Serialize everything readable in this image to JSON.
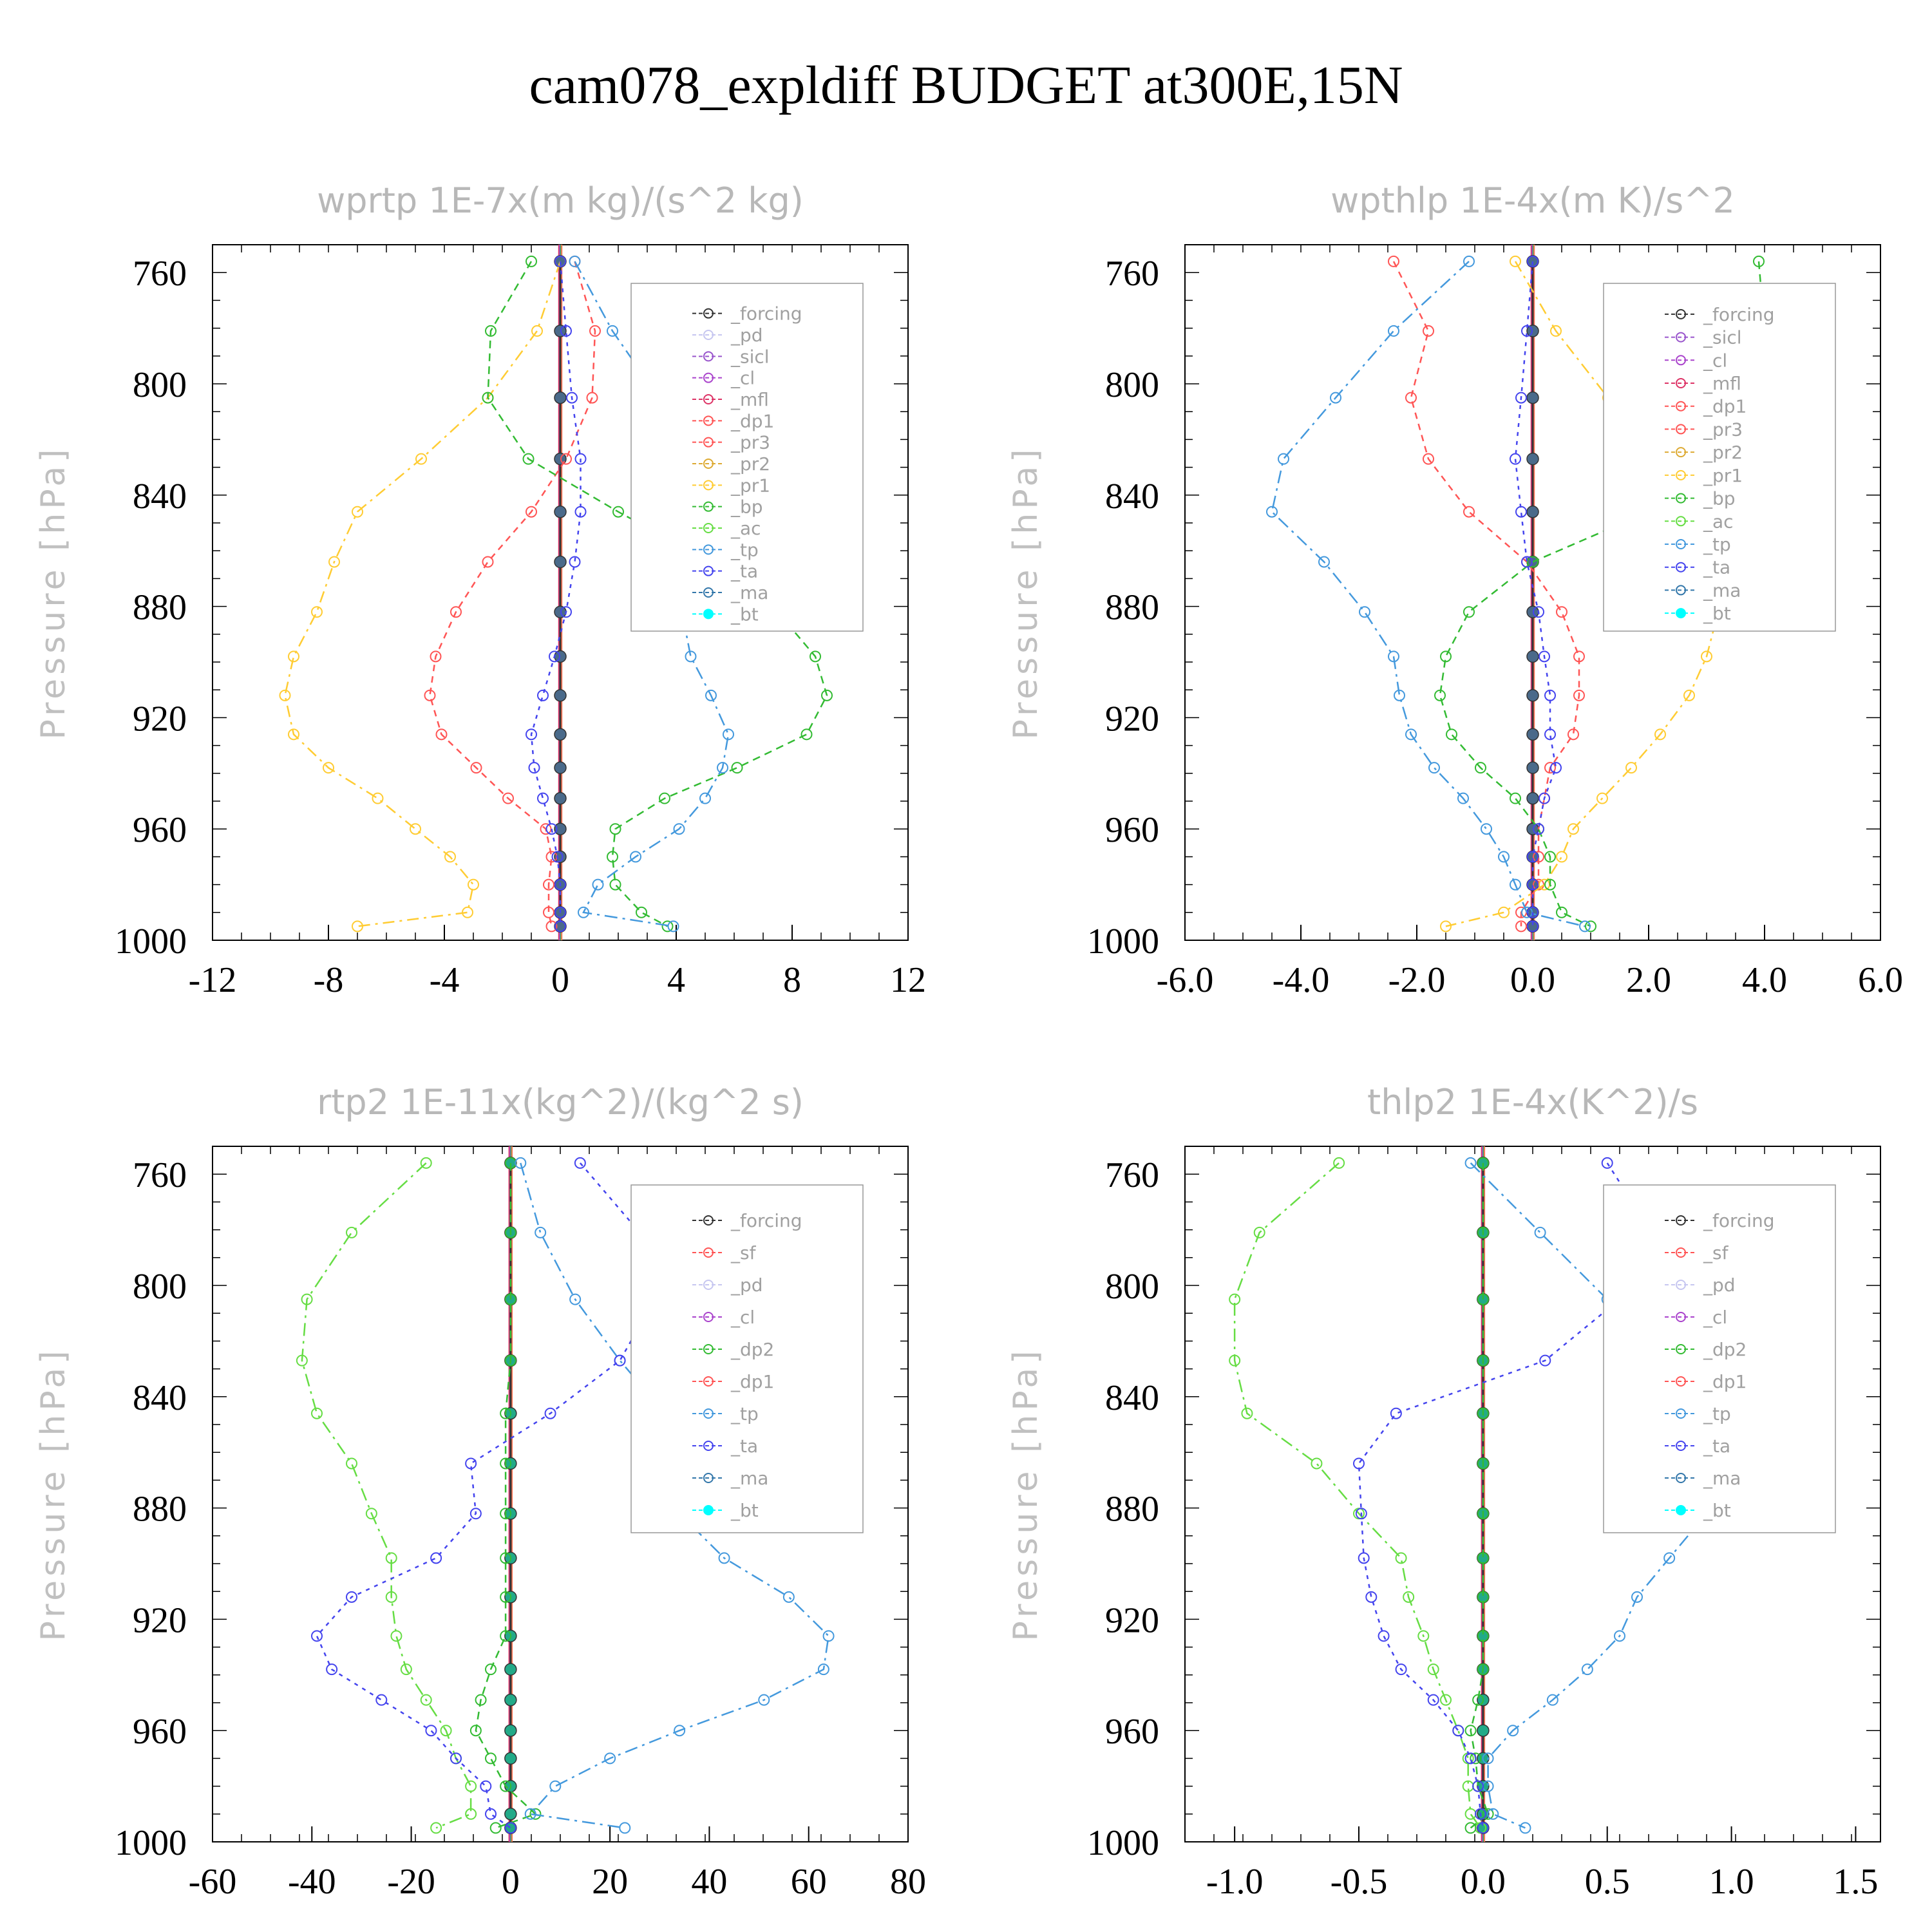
{
  "title": "cam078_expldiff  BUDGET at300E,15N",
  "colors": {
    "forcing": "#333333",
    "pd": "#c6c6f0",
    "sicl": "#9955cc",
    "cl": "#aa44cc",
    "mfl": "#dd3366",
    "dp1": "#ff5555",
    "pr3": "#ff5555",
    "pr2": "#ddaa33",
    "pr1": "#ffcc33",
    "bp": "#33bb33",
    "ac": "#66dd44",
    "tp": "#4499dd",
    "ta": "#4444ee",
    "ma": "#3377aa",
    "bt": "#00ffff"
  },
  "chart_data": [
    {
      "type": "line",
      "title": "wprtp  1E-7x(m kg)/(s^2 kg)",
      "ylabel": "Pressure [hPa]",
      "xlim": [
        -12,
        12
      ],
      "xticks": [
        "-12",
        "-8",
        "-4",
        "0",
        "4",
        "8",
        "12"
      ],
      "ylim": [
        1000,
        750
      ],
      "yticks": [
        "760",
        "800",
        "840",
        "880",
        "920",
        "960",
        "1000"
      ],
      "legend": [
        "_forcing",
        "_pd",
        "_sicl",
        "_cl",
        "_mfl",
        "_dp1",
        "_pr3",
        "_pr2",
        "_pr1",
        "_bp",
        "_ac",
        "_tp",
        "_ta",
        "_ma",
        "_bt"
      ],
      "y": [
        756,
        781,
        805,
        827,
        846,
        864,
        882,
        898,
        912,
        926,
        938,
        949,
        960,
        970,
        980,
        990,
        995
      ],
      "series": [
        {
          "name": "_forcing",
          "values": [
            0,
            0,
            0,
            0,
            0,
            0,
            0,
            0,
            0,
            0,
            0,
            0,
            0,
            0,
            0,
            0,
            0
          ]
        },
        {
          "name": "_pr3",
          "values": [
            0.5,
            1.2,
            1.1,
            0.2,
            -1,
            -2.5,
            -3.6,
            -4.3,
            -4.5,
            -4.1,
            -2.9,
            -1.8,
            -0.5,
            -0.3,
            -0.4,
            -0.4,
            -0.3
          ]
        },
        {
          "name": "_pr1",
          "values": [
            0,
            -0.8,
            -2.5,
            -4.8,
            -7,
            -7.8,
            -8.4,
            -9.2,
            -9.5,
            -9.2,
            -8,
            -6.3,
            -5,
            -3.8,
            -3,
            -3.2,
            -7
          ]
        },
        {
          "name": "_bp",
          "values": [
            -1,
            -2.4,
            -2.5,
            -1.1,
            2,
            5.2,
            7.5,
            8.8,
            9.2,
            8.5,
            6.1,
            3.6,
            1.9,
            1.8,
            1.9,
            2.8,
            3.7
          ]
        },
        {
          "name": "_tp",
          "values": [
            0.5,
            1.8,
            3.4,
            4.2,
            4.5,
            4.2,
            4.2,
            4.5,
            5.2,
            5.8,
            5.6,
            5,
            4.1,
            2.6,
            1.3,
            0.8,
            3.9
          ]
        },
        {
          "name": "_ta",
          "values": [
            0,
            0.2,
            0.4,
            0.7,
            0.7,
            0.5,
            0.2,
            -0.2,
            -0.6,
            -1,
            -0.9,
            -0.6,
            -0.3,
            -0.1,
            0,
            0,
            0
          ]
        }
      ]
    },
    {
      "type": "line",
      "title": "wpthlp  1E-4x(m K)/s^2",
      "ylabel": "Pressure [hPa]",
      "xlim": [
        -6,
        6
      ],
      "xticks": [
        "-6.0",
        "-4.0",
        "-2.0",
        "0.0",
        "2.0",
        "4.0",
        "6.0"
      ],
      "ylim": [
        1000,
        750
      ],
      "yticks": [
        "760",
        "800",
        "840",
        "880",
        "920",
        "960",
        "1000"
      ],
      "legend": [
        "_forcing",
        "_sicl",
        "_cl",
        "_mfl",
        "_dp1",
        "_pr3",
        "_pr2",
        "_pr1",
        "_bp",
        "_ac",
        "_tp",
        "_ta",
        "_ma",
        "_bt"
      ],
      "y": [
        756,
        781,
        805,
        827,
        846,
        864,
        882,
        898,
        912,
        926,
        938,
        949,
        960,
        970,
        980,
        990,
        995
      ],
      "series": [
        {
          "name": "_forcing",
          "values": [
            0,
            0,
            0,
            0,
            0,
            0,
            0,
            0,
            0,
            0,
            0,
            0,
            0,
            0,
            0,
            0,
            0
          ]
        },
        {
          "name": "_pr3",
          "values": [
            -2.4,
            -1.8,
            -2.1,
            -1.8,
            -1.1,
            -0.1,
            0.5,
            0.8,
            0.8,
            0.7,
            0.3,
            0.2,
            0.1,
            0.1,
            0.1,
            -0.2,
            -0.2
          ]
        },
        {
          "name": "_pr1",
          "values": [
            -0.3,
            0.4,
            1.3,
            2.3,
            3.2,
            3.5,
            3.2,
            3,
            2.7,
            2.2,
            1.7,
            1.2,
            0.7,
            0.5,
            0.2,
            -0.5,
            -1.5
          ]
        },
        {
          "name": "_bp",
          "values": [
            3.9,
            4,
            4.8,
            4.1,
            2,
            0,
            -1.1,
            -1.5,
            -1.6,
            -1.4,
            -0.9,
            -0.3,
            0.1,
            0.3,
            0.3,
            0.5,
            1
          ]
        },
        {
          "name": "_tp",
          "values": [
            -1.1,
            -2.4,
            -3.4,
            -4.3,
            -4.5,
            -3.6,
            -2.9,
            -2.4,
            -2.3,
            -2.1,
            -1.7,
            -1.2,
            -0.8,
            -0.5,
            -0.3,
            -0.1,
            0.9
          ]
        },
        {
          "name": "_ta",
          "values": [
            0,
            -0.1,
            -0.2,
            -0.3,
            -0.2,
            -0.1,
            0.1,
            0.2,
            0.3,
            0.3,
            0.4,
            0.2,
            0.1,
            0,
            0,
            0,
            0
          ]
        }
      ]
    },
    {
      "type": "line",
      "title": "rtp2  1E-11x(kg^2)/(kg^2 s)",
      "ylabel": "Pressure [hPa]",
      "xlim": [
        -60,
        80
      ],
      "xticks": [
        "-60",
        "-40",
        "-20",
        "0",
        "20",
        "40",
        "60",
        "80"
      ],
      "ylim": [
        1000,
        750
      ],
      "yticks": [
        "760",
        "800",
        "840",
        "880",
        "920",
        "960",
        "1000"
      ],
      "legend": [
        "_forcing",
        "_sf",
        "_pd",
        "_cl",
        "_dp2",
        "_dp1",
        "_tp",
        "_ta",
        "_ma",
        "_bt"
      ],
      "y": [
        756,
        781,
        805,
        827,
        846,
        864,
        882,
        898,
        912,
        926,
        938,
        949,
        960,
        970,
        980,
        990,
        995
      ],
      "series": [
        {
          "name": "_forcing",
          "values": [
            0,
            0,
            0,
            0,
            0,
            0,
            0,
            0,
            0,
            0,
            0,
            0,
            0,
            0,
            0,
            0,
            0
          ]
        },
        {
          "name": "_dp1",
          "values": [
            -17,
            -32,
            -41,
            -42,
            -39,
            -32,
            -28,
            -24,
            -24,
            -23,
            -21,
            -17,
            -13,
            -11,
            -8,
            -8,
            -15
          ]
        },
        {
          "name": "_dp2",
          "values": [
            0,
            0,
            0,
            0,
            -1,
            -1,
            -1,
            -1,
            -1,
            -1,
            -4,
            -6,
            -7,
            -4,
            -1,
            5,
            -3
          ]
        },
        {
          "name": "_tp",
          "values": [
            2,
            6,
            13,
            22,
            31,
            32,
            34,
            43,
            56,
            64,
            63,
            51,
            34,
            20,
            9,
            4,
            23
          ]
        },
        {
          "name": "_ta",
          "values": [
            14,
            26,
            29,
            22,
            8,
            -8,
            -7,
            -15,
            -32,
            -39,
            -36,
            -26,
            -16,
            -11,
            -5,
            -4,
            0
          ]
        }
      ]
    },
    {
      "type": "line",
      "title": "thlp2  1E-4x(K^2)/s",
      "ylabel": "Pressure [hPa]",
      "xlim": [
        -1.2,
        1.6
      ],
      "xticks": [
        "-1.0",
        "-0.5",
        "0.0",
        "0.5",
        "1.0",
        "1.5"
      ],
      "ylim": [
        1000,
        750
      ],
      "yticks": [
        "760",
        "800",
        "840",
        "880",
        "920",
        "960",
        "1000"
      ],
      "legend": [
        "_forcing",
        "_sf",
        "_pd",
        "_cl",
        "_dp2",
        "_dp1",
        "_tp",
        "_ta",
        "_ma",
        "_bt"
      ],
      "y": [
        756,
        781,
        805,
        827,
        846,
        864,
        882,
        898,
        912,
        926,
        938,
        949,
        960,
        970,
        980,
        990,
        995
      ],
      "series": [
        {
          "name": "_forcing",
          "values": [
            0,
            0,
            0,
            0,
            0,
            0,
            0,
            0,
            0,
            0,
            0,
            0,
            0,
            0,
            0,
            0,
            0
          ]
        },
        {
          "name": "_dp1",
          "values": [
            -0.58,
            -0.9,
            -1,
            -1,
            -0.95,
            -0.67,
            -0.5,
            -0.33,
            -0.3,
            -0.24,
            -0.2,
            -0.15,
            -0.1,
            -0.06,
            -0.06,
            -0.05,
            -0.01
          ]
        },
        {
          "name": "_dp2",
          "values": [
            0,
            0,
            0,
            0,
            0,
            0,
            0,
            0,
            0,
            0,
            0,
            -0.02,
            -0.05,
            -0.03,
            -0.02,
            0.02,
            -0.05
          ]
        },
        {
          "name": "_tp",
          "values": [
            -0.05,
            0.23,
            0.5,
            0.82,
            1.23,
            1.08,
            0.9,
            0.75,
            0.62,
            0.55,
            0.42,
            0.28,
            0.12,
            0.02,
            0.02,
            0.04,
            0.17
          ]
        },
        {
          "name": "_ta",
          "values": [
            0.5,
            0.68,
            0.55,
            0.25,
            -0.35,
            -0.5,
            -0.49,
            -0.48,
            -0.45,
            -0.4,
            -0.33,
            -0.2,
            -0.1,
            -0.05,
            -0.02,
            -0.01,
            0
          ]
        }
      ]
    }
  ]
}
